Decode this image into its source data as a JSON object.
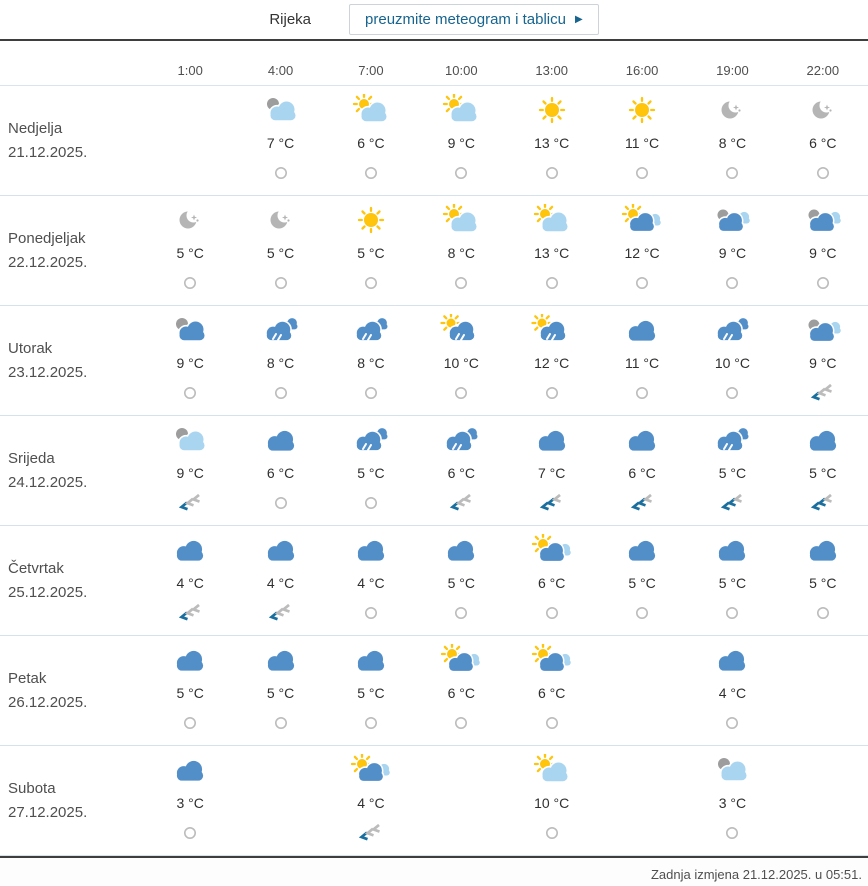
{
  "header": {
    "location": "Rijeka",
    "download_button": "preuzmite meteogram i tablicu",
    "arrow_icon": "▶"
  },
  "table": {
    "times": [
      "1:00",
      "4:00",
      "7:00",
      "10:00",
      "13:00",
      "16:00",
      "19:00",
      "22:00"
    ],
    "days": [
      {
        "name": "Nedjelja",
        "date": "21.12.2025.",
        "cells": [
          null,
          {
            "icon": "gray-lightcloud",
            "temp": "7 °C",
            "wind": "calm"
          },
          {
            "icon": "sun-lightcloud",
            "temp": "6 °C",
            "wind": "calm"
          },
          {
            "icon": "sun-lightcloud",
            "temp": "9 °C",
            "wind": "calm"
          },
          {
            "icon": "sun",
            "temp": "13 °C",
            "wind": "calm"
          },
          {
            "icon": "sun",
            "temp": "11 °C",
            "wind": "calm"
          },
          {
            "icon": "moon",
            "temp": "8 °C",
            "wind": "calm"
          },
          {
            "icon": "moon",
            "temp": "6 °C",
            "wind": "calm"
          }
        ]
      },
      {
        "name": "Ponedjeljak",
        "date": "22.12.2025.",
        "cells": [
          {
            "icon": "moon",
            "temp": "5 °C",
            "wind": "calm"
          },
          {
            "icon": "moon",
            "temp": "5 °C",
            "wind": "calm"
          },
          {
            "icon": "sun",
            "temp": "5 °C",
            "wind": "calm"
          },
          {
            "icon": "sun-lightcloud",
            "temp": "8 °C",
            "wind": "calm"
          },
          {
            "icon": "sun-lightcloud",
            "temp": "13 °C",
            "wind": "calm"
          },
          {
            "icon": "sun-bluecloud",
            "temp": "12 °C",
            "wind": "calm"
          },
          {
            "icon": "cloudy-gray-blue-light",
            "temp": "9 °C",
            "wind": "calm"
          },
          {
            "icon": "cloudy-gray-blue-light",
            "temp": "9 °C",
            "wind": "calm"
          }
        ]
      },
      {
        "name": "Utorak",
        "date": "23.12.2025.",
        "cells": [
          {
            "icon": "gray-bluecloud",
            "temp": "9 °C",
            "wind": "calm"
          },
          {
            "icon": "rain",
            "temp": "8 °C",
            "wind": "calm"
          },
          {
            "icon": "rain",
            "temp": "8 °C",
            "wind": "calm"
          },
          {
            "icon": "sun-rain",
            "temp": "10 °C",
            "wind": "calm"
          },
          {
            "icon": "sun-rain",
            "temp": "12 °C",
            "wind": "calm"
          },
          {
            "icon": "cloud",
            "temp": "11 °C",
            "wind": "calm"
          },
          {
            "icon": "rain",
            "temp": "10 °C",
            "wind": "calm"
          },
          {
            "icon": "cloudy-gray-blue-light",
            "temp": "9 °C",
            "wind": "wind-1"
          }
        ]
      },
      {
        "name": "Srijeda",
        "date": "24.12.2025.",
        "cells": [
          {
            "icon": "gray-lightcloud",
            "temp": "9 °C",
            "wind": "wind-1"
          },
          {
            "icon": "cloud",
            "temp": "6 °C",
            "wind": "calm"
          },
          {
            "icon": "rain",
            "temp": "5 °C",
            "wind": "calm"
          },
          {
            "icon": "rain",
            "temp": "6 °C",
            "wind": "wind-1"
          },
          {
            "icon": "cloud",
            "temp": "7 °C",
            "wind": "wind-2"
          },
          {
            "icon": "cloud",
            "temp": "6 °C",
            "wind": "wind-2"
          },
          {
            "icon": "rain",
            "temp": "5 °C",
            "wind": "wind-2"
          },
          {
            "icon": "cloud",
            "temp": "5 °C",
            "wind": "wind-2"
          }
        ]
      },
      {
        "name": "Četvrtak",
        "date": "25.12.2025.",
        "cells": [
          {
            "icon": "cloud",
            "temp": "4 °C",
            "wind": "wind-1"
          },
          {
            "icon": "cloud",
            "temp": "4 °C",
            "wind": "wind-1"
          },
          {
            "icon": "cloud",
            "temp": "4 °C",
            "wind": "calm"
          },
          {
            "icon": "cloud",
            "temp": "5 °C",
            "wind": "calm"
          },
          {
            "icon": "sun-bluecloud",
            "temp": "6 °C",
            "wind": "calm"
          },
          {
            "icon": "cloud",
            "temp": "5 °C",
            "wind": "calm"
          },
          {
            "icon": "cloud",
            "temp": "5 °C",
            "wind": "calm"
          },
          {
            "icon": "cloud",
            "temp": "5 °C",
            "wind": "calm"
          }
        ]
      },
      {
        "name": "Petak",
        "date": "26.12.2025.",
        "cells": [
          {
            "icon": "cloud",
            "temp": "5 °C",
            "wind": "calm"
          },
          {
            "icon": "cloud",
            "temp": "5 °C",
            "wind": "calm"
          },
          {
            "icon": "cloud",
            "temp": "5 °C",
            "wind": "calm"
          },
          {
            "icon": "sun-bluecloud",
            "temp": "6 °C",
            "wind": "calm"
          },
          {
            "icon": "sun-bluecloud",
            "temp": "6 °C",
            "wind": "calm"
          },
          null,
          {
            "icon": "cloud",
            "temp": "4 °C",
            "wind": "calm"
          },
          null
        ]
      },
      {
        "name": "Subota",
        "date": "27.12.2025.",
        "cells": [
          {
            "icon": "cloud",
            "temp": "3 °C",
            "wind": "calm"
          },
          null,
          {
            "icon": "sun-bluecloud",
            "temp": "4 °C",
            "wind": "wind-1"
          },
          null,
          {
            "icon": "sun-lightcloud",
            "temp": "10 °C",
            "wind": "calm"
          },
          null,
          {
            "icon": "gray-lightcloud",
            "temp": "3 °C",
            "wind": "calm"
          },
          null
        ]
      }
    ]
  },
  "footer": {
    "last_update": "Zadnja izmjena 21.12.2025. u 05:51."
  },
  "colors": {
    "accent": "#17648f",
    "cloud_blue": "#528fc9",
    "cloud_light": "#a9d5f0",
    "cloud_gray": "#9d9d9d",
    "sun": "#ffc40c",
    "moon": "#b5b5b5",
    "wind_blue": "#1a6f9e",
    "wind_gray": "#bcbcbc",
    "row_divider": "#d5e2ee",
    "dark_divider": "#3e3e3e"
  }
}
